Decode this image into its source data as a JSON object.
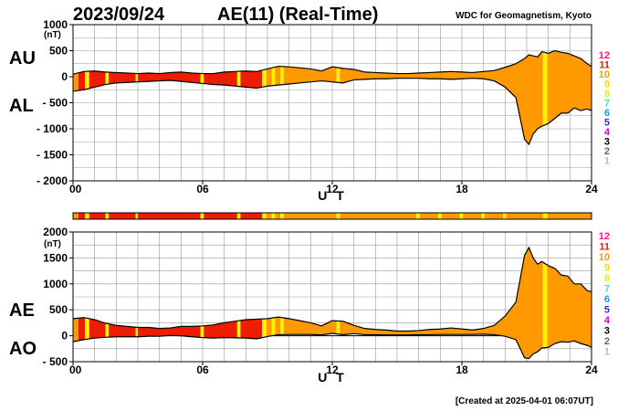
{
  "header": {
    "date": "2023/09/24",
    "title": "AE(11) (Real-Time)",
    "source": "WDC for Geomagnetism, Kyoto"
  },
  "footer": {
    "created": "[Created at 2025-04-01 06:07UT]"
  },
  "colors": {
    "orange": "#FF9900",
    "red": "#EE1C00",
    "yellow": "#FFF200",
    "grid": "#9a9a9a",
    "line": "#000000"
  },
  "legend": [
    {
      "label": "12",
      "color": "#FF1493"
    },
    {
      "label": "11",
      "color": "#EE1C00"
    },
    {
      "label": "10",
      "color": "#FF9900"
    },
    {
      "label": "9",
      "color": "#FFD700"
    },
    {
      "label": "8",
      "color": "#CCFF00"
    },
    {
      "label": "7",
      "color": "#40E0D0"
    },
    {
      "label": "6",
      "color": "#1E90FF"
    },
    {
      "label": "5",
      "color": "#3333CC"
    },
    {
      "label": "4",
      "color": "#CC00CC"
    },
    {
      "label": "3",
      "color": "#000000"
    },
    {
      "label": "2",
      "color": "#666666"
    },
    {
      "label": "1",
      "color": "#BBBBBB"
    }
  ],
  "chart_data": [
    {
      "type": "area",
      "panel": "AU/AL",
      "side_labels": [
        "AU",
        "AL"
      ],
      "ylabel": "(nT)",
      "xlabel": "U T",
      "xlim": [
        0,
        24
      ],
      "ylim": [
        -2000,
        1000
      ],
      "x_ticks": [
        "00",
        "06",
        "12",
        "18",
        "24"
      ],
      "y_ticks": [
        "1000",
        "500",
        "0",
        "- 500",
        "- 1000",
        "- 1500",
        "- 2000"
      ],
      "series": [
        {
          "name": "AU",
          "x": [
            0,
            0.5,
            1,
            1.5,
            2,
            2.5,
            3,
            3.5,
            4,
            4.5,
            5,
            5.5,
            6,
            6.5,
            7,
            7.5,
            8,
            8.5,
            9,
            9.5,
            10,
            10.5,
            11,
            11.5,
            12,
            12.5,
            13,
            13.5,
            14,
            14.5,
            15,
            15.5,
            16,
            16.5,
            17,
            17.5,
            18,
            18.5,
            19,
            19.5,
            20,
            20.5,
            20.7,
            20.9,
            21.1,
            21.3,
            21.5,
            21.7,
            22,
            22.3,
            22.6,
            22.9,
            23.2,
            23.5,
            23.8,
            24
          ],
          "values": [
            50,
            100,
            110,
            90,
            80,
            70,
            60,
            70,
            60,
            80,
            90,
            70,
            60,
            60,
            90,
            100,
            110,
            100,
            150,
            200,
            190,
            170,
            150,
            110,
            190,
            160,
            140,
            90,
            80,
            70,
            60,
            60,
            70,
            80,
            90,
            100,
            90,
            80,
            100,
            120,
            180,
            250,
            300,
            350,
            420,
            400,
            380,
            480,
            450,
            500,
            470,
            450,
            400,
            350,
            250,
            200
          ]
        },
        {
          "name": "AL",
          "x": [
            0,
            0.5,
            1,
            1.5,
            2,
            2.5,
            3,
            3.5,
            4,
            4.5,
            5,
            5.5,
            6,
            6.5,
            7,
            7.5,
            8,
            8.5,
            9,
            9.5,
            10,
            10.5,
            11,
            11.5,
            12,
            12.5,
            13,
            13.5,
            14,
            14.5,
            15,
            15.5,
            16,
            16.5,
            17,
            17.5,
            18,
            18.5,
            19,
            19.5,
            20,
            20.5,
            20.7,
            20.9,
            21.1,
            21.3,
            21.5,
            21.7,
            22,
            22.3,
            22.6,
            22.9,
            23.2,
            23.5,
            23.8,
            24
          ],
          "values": [
            -280,
            -250,
            -200,
            -150,
            -120,
            -110,
            -100,
            -90,
            -80,
            -70,
            -90,
            -110,
            -130,
            -150,
            -160,
            -180,
            -200,
            -220,
            -180,
            -160,
            -140,
            -120,
            -100,
            -80,
            -100,
            -120,
            -60,
            -50,
            -40,
            -40,
            -30,
            -30,
            -30,
            -40,
            -40,
            -50,
            -40,
            -30,
            -40,
            -80,
            -200,
            -400,
            -800,
            -1200,
            -1300,
            -1100,
            -1000,
            -950,
            -900,
            -800,
            -700,
            -700,
            -600,
            -650,
            -620,
            -650
          ]
        }
      ],
      "color_segments": [
        {
          "start": 0,
          "end": 0.25,
          "color": "orange"
        },
        {
          "start": 0.25,
          "end": 0.55,
          "color": "red"
        },
        {
          "start": 0.55,
          "end": 0.75,
          "color": "yellow"
        },
        {
          "start": 0.75,
          "end": 1.5,
          "color": "red"
        },
        {
          "start": 1.5,
          "end": 1.65,
          "color": "yellow"
        },
        {
          "start": 1.65,
          "end": 2.9,
          "color": "red"
        },
        {
          "start": 2.9,
          "end": 3.0,
          "color": "yellow"
        },
        {
          "start": 3.0,
          "end": 5.9,
          "color": "red"
        },
        {
          "start": 5.9,
          "end": 6.05,
          "color": "yellow"
        },
        {
          "start": 6.05,
          "end": 7.6,
          "color": "red"
        },
        {
          "start": 7.6,
          "end": 7.75,
          "color": "yellow"
        },
        {
          "start": 7.75,
          "end": 8.75,
          "color": "red"
        },
        {
          "start": 8.75,
          "end": 8.95,
          "color": "yellow"
        },
        {
          "start": 8.95,
          "end": 9.2,
          "color": "orange"
        },
        {
          "start": 9.2,
          "end": 9.35,
          "color": "yellow"
        },
        {
          "start": 9.35,
          "end": 9.6,
          "color": "orange"
        },
        {
          "start": 9.6,
          "end": 9.75,
          "color": "yellow"
        },
        {
          "start": 9.75,
          "end": 12.2,
          "color": "orange"
        },
        {
          "start": 12.2,
          "end": 12.35,
          "color": "yellow"
        },
        {
          "start": 12.35,
          "end": 21.75,
          "color": "orange"
        },
        {
          "start": 21.75,
          "end": 21.95,
          "color": "yellow"
        },
        {
          "start": 21.95,
          "end": 24,
          "color": "orange"
        }
      ]
    },
    {
      "type": "area",
      "panel": "AE/AO",
      "side_labels": [
        "AE",
        "AO"
      ],
      "ylabel": "(nT)",
      "xlabel": "U T",
      "xlim": [
        0,
        24
      ],
      "ylim": [
        -500,
        2000
      ],
      "x_ticks": [
        "00",
        "06",
        "12",
        "18",
        "24"
      ],
      "y_ticks": [
        "2000",
        "1500",
        "1000",
        "500",
        "0",
        "- 500"
      ],
      "series": [
        {
          "name": "AE",
          "x": [
            0,
            0.5,
            1,
            1.5,
            2,
            2.5,
            3,
            3.5,
            4,
            4.5,
            5,
            5.5,
            6,
            6.5,
            7,
            7.5,
            8,
            8.5,
            9,
            9.5,
            10,
            10.5,
            11,
            11.5,
            12,
            12.5,
            13,
            13.5,
            14,
            14.5,
            15,
            15.5,
            16,
            16.5,
            17,
            17.5,
            18,
            18.5,
            19,
            19.5,
            20,
            20.5,
            20.7,
            20.9,
            21.1,
            21.3,
            21.5,
            21.7,
            22,
            22.3,
            22.6,
            22.9,
            23.2,
            23.5,
            23.8,
            24
          ],
          "values": [
            330,
            350,
            310,
            240,
            200,
            180,
            160,
            160,
            140,
            150,
            180,
            180,
            190,
            210,
            250,
            280,
            310,
            320,
            330,
            360,
            330,
            290,
            250,
            190,
            290,
            280,
            200,
            140,
            120,
            110,
            90,
            90,
            100,
            120,
            130,
            150,
            130,
            110,
            140,
            200,
            380,
            650,
            1100,
            1550,
            1700,
            1500,
            1380,
            1430,
            1350,
            1300,
            1170,
            1150,
            1000,
            1000,
            870,
            850
          ]
        },
        {
          "name": "AO",
          "x": [
            0,
            0.5,
            1,
            1.5,
            2,
            2.5,
            3,
            3.5,
            4,
            4.5,
            5,
            5.5,
            6,
            6.5,
            7,
            7.5,
            8,
            8.5,
            9,
            9.5,
            10,
            10.5,
            11,
            11.5,
            12,
            12.5,
            13,
            13.5,
            14,
            14.5,
            15,
            15.5,
            16,
            16.5,
            17,
            17.5,
            18,
            18.5,
            19,
            19.5,
            20,
            20.5,
            20.7,
            20.9,
            21.1,
            21.3,
            21.5,
            21.7,
            22,
            22.3,
            22.6,
            22.9,
            23.2,
            23.5,
            23.8,
            24
          ],
          "values": [
            -115,
            -75,
            -45,
            -30,
            -20,
            -20,
            -20,
            -10,
            -10,
            5,
            0,
            -20,
            -35,
            -45,
            -35,
            -40,
            -45,
            -60,
            -15,
            20,
            25,
            25,
            25,
            15,
            45,
            20,
            40,
            20,
            20,
            15,
            15,
            15,
            20,
            20,
            25,
            25,
            25,
            25,
            30,
            20,
            -10,
            -75,
            -250,
            -425,
            -440,
            -350,
            -310,
            -235,
            -225,
            -150,
            -115,
            -125,
            -100,
            -150,
            -185,
            -225
          ]
        }
      ],
      "color_segments": [
        {
          "start": 0,
          "end": 0.25,
          "color": "orange"
        },
        {
          "start": 0.25,
          "end": 0.55,
          "color": "red"
        },
        {
          "start": 0.55,
          "end": 0.75,
          "color": "yellow"
        },
        {
          "start": 0.75,
          "end": 1.5,
          "color": "red"
        },
        {
          "start": 1.5,
          "end": 1.65,
          "color": "yellow"
        },
        {
          "start": 1.65,
          "end": 2.9,
          "color": "red"
        },
        {
          "start": 2.9,
          "end": 3.0,
          "color": "yellow"
        },
        {
          "start": 3.0,
          "end": 5.9,
          "color": "red"
        },
        {
          "start": 5.9,
          "end": 6.05,
          "color": "yellow"
        },
        {
          "start": 6.05,
          "end": 7.6,
          "color": "red"
        },
        {
          "start": 7.6,
          "end": 7.75,
          "color": "yellow"
        },
        {
          "start": 7.75,
          "end": 8.75,
          "color": "red"
        },
        {
          "start": 8.75,
          "end": 8.95,
          "color": "yellow"
        },
        {
          "start": 8.95,
          "end": 9.2,
          "color": "orange"
        },
        {
          "start": 9.2,
          "end": 9.35,
          "color": "yellow"
        },
        {
          "start": 9.35,
          "end": 9.6,
          "color": "orange"
        },
        {
          "start": 9.6,
          "end": 9.75,
          "color": "yellow"
        },
        {
          "start": 9.75,
          "end": 12.2,
          "color": "orange"
        },
        {
          "start": 12.2,
          "end": 12.35,
          "color": "yellow"
        },
        {
          "start": 12.35,
          "end": 21.75,
          "color": "orange"
        },
        {
          "start": 21.75,
          "end": 21.95,
          "color": "yellow"
        },
        {
          "start": 21.95,
          "end": 24,
          "color": "orange"
        }
      ]
    }
  ],
  "indicator_bar": {
    "segments": [
      {
        "start": 0,
        "end": 0.25,
        "color": "orange"
      },
      {
        "start": 0.25,
        "end": 0.55,
        "color": "red"
      },
      {
        "start": 0.55,
        "end": 0.75,
        "color": "yellow"
      },
      {
        "start": 0.75,
        "end": 1.5,
        "color": "red"
      },
      {
        "start": 1.5,
        "end": 1.65,
        "color": "yellow"
      },
      {
        "start": 1.65,
        "end": 2.9,
        "color": "red"
      },
      {
        "start": 2.9,
        "end": 3.0,
        "color": "yellow"
      },
      {
        "start": 3.0,
        "end": 5.9,
        "color": "red"
      },
      {
        "start": 5.9,
        "end": 6.05,
        "color": "yellow"
      },
      {
        "start": 6.05,
        "end": 7.6,
        "color": "red"
      },
      {
        "start": 7.6,
        "end": 7.75,
        "color": "yellow"
      },
      {
        "start": 7.75,
        "end": 8.75,
        "color": "red"
      },
      {
        "start": 8.75,
        "end": 8.95,
        "color": "yellow"
      },
      {
        "start": 8.95,
        "end": 9.2,
        "color": "orange"
      },
      {
        "start": 9.2,
        "end": 9.35,
        "color": "yellow"
      },
      {
        "start": 9.35,
        "end": 9.6,
        "color": "orange"
      },
      {
        "start": 9.6,
        "end": 9.75,
        "color": "yellow"
      },
      {
        "start": 9.75,
        "end": 12.2,
        "color": "orange"
      },
      {
        "start": 12.2,
        "end": 12.35,
        "color": "yellow"
      },
      {
        "start": 12.35,
        "end": 15.9,
        "color": "orange"
      },
      {
        "start": 15.9,
        "end": 16.05,
        "color": "yellow"
      },
      {
        "start": 16.05,
        "end": 16.9,
        "color": "orange"
      },
      {
        "start": 16.9,
        "end": 17.05,
        "color": "yellow"
      },
      {
        "start": 17.05,
        "end": 17.9,
        "color": "orange"
      },
      {
        "start": 17.9,
        "end": 18.05,
        "color": "yellow"
      },
      {
        "start": 18.05,
        "end": 18.9,
        "color": "orange"
      },
      {
        "start": 18.9,
        "end": 19.05,
        "color": "yellow"
      },
      {
        "start": 19.05,
        "end": 19.9,
        "color": "orange"
      },
      {
        "start": 19.9,
        "end": 20.05,
        "color": "yellow"
      },
      {
        "start": 20.05,
        "end": 21.75,
        "color": "orange"
      },
      {
        "start": 21.75,
        "end": 21.95,
        "color": "yellow"
      },
      {
        "start": 21.95,
        "end": 24,
        "color": "orange"
      }
    ]
  }
}
